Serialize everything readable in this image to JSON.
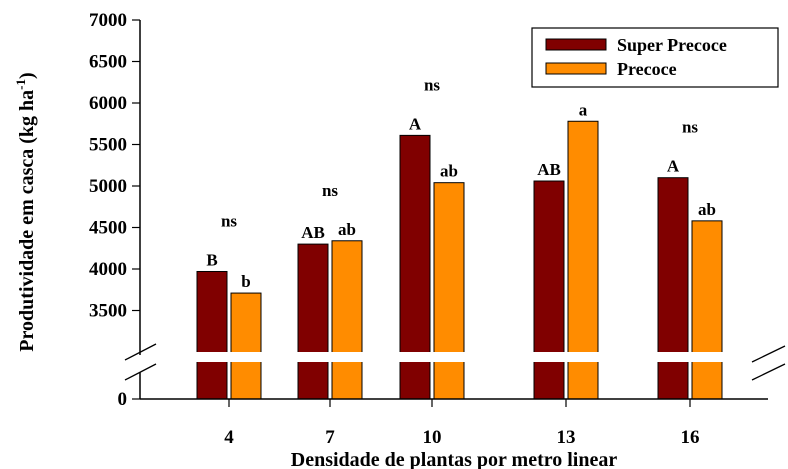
{
  "chart_data": {
    "type": "bar",
    "xlabel": "Densidade de plantas por metro linear",
    "ylabel": "Produtividade em casca (kg ha",
    "ylabel_sup": "-1",
    "ylabel_close": ")",
    "ylim_upper": [
      3000,
      7000
    ],
    "ylim_lower": [
      0,
      1000
    ],
    "yticks": [
      "7000",
      "6500",
      "6000",
      "5500",
      "5000",
      "4500",
      "4000",
      "3500"
    ],
    "yticks_values": [
      7000,
      6500,
      6000,
      5500,
      5000,
      4500,
      4000,
      3500
    ],
    "ybreak_tick": "0",
    "categories": [
      "4",
      "7",
      "10",
      "13",
      "16"
    ],
    "series": [
      {
        "name": "Super Precoce",
        "color": "#800000",
        "values": [
          3970,
          4300,
          5610,
          5060,
          5100
        ],
        "labels": [
          "B",
          "AB",
          "A",
          "AB",
          "A"
        ]
      },
      {
        "name": "Precoce",
        "color": "#ff8c00",
        "values": [
          3710,
          4340,
          5040,
          5780,
          4580
        ],
        "labels": [
          "b",
          "ab",
          "ab",
          "a",
          "ab"
        ]
      }
    ],
    "annotations": [
      "ns",
      "ns",
      "ns",
      "ns",
      "ns"
    ],
    "legend_position": "top-right",
    "axis_break": true
  }
}
